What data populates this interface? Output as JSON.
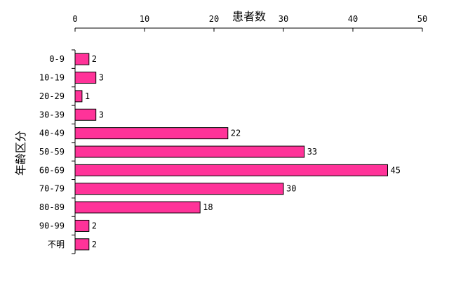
{
  "chart_data": {
    "type": "bar",
    "orientation": "horizontal",
    "title": "",
    "xlabel": "患者数",
    "ylabel": "年齢区分",
    "categories": [
      "0-9",
      "10-19",
      "20-29",
      "30-39",
      "40-49",
      "50-59",
      "60-69",
      "70-79",
      "80-89",
      "90-99",
      "不明"
    ],
    "values": [
      2,
      3,
      1,
      3,
      22,
      33,
      45,
      30,
      18,
      2,
      2
    ],
    "xlim": [
      0,
      50
    ],
    "xticks": [
      0,
      10,
      20,
      30,
      40,
      50
    ],
    "xaxis_position": "top",
    "grid": false,
    "legend": false,
    "data_labels": true,
    "colors": {
      "bar_fill": "#ff3399",
      "bar_stroke": "#000000",
      "axis": "#000000"
    }
  }
}
